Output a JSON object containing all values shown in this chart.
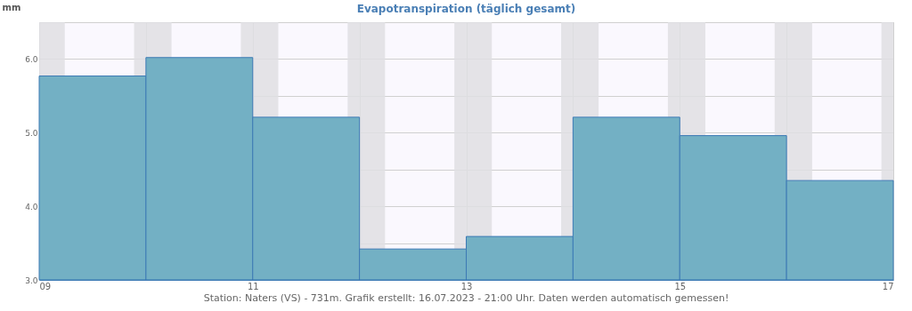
{
  "chart_data": {
    "type": "bar",
    "title": "Evapotranspiration (täglich gesamt)",
    "ylabel": "mm",
    "x": [
      "2023-07-09T12:00",
      "2023-07-10T12:00",
      "2023-07-11T12:00",
      "2023-07-12T12:00",
      "2023-07-13T12:00",
      "2023-07-14T12:00",
      "2023-07-15T12:00",
      "2023-07-16T12:00"
    ],
    "series": [
      {
        "color": "#73b0c4",
        "values": [
          5.77,
          6.02,
          5.21,
          3.42,
          3.59,
          5.21,
          4.96,
          4.35
        ]
      }
    ],
    "xlim": [
      "2023-07-09",
      "2023-07-17"
    ],
    "xticks": [
      {
        "value": "2023-07-09",
        "label": "09"
      },
      {
        "value": "2023-07-10",
        "label": null
      },
      {
        "value": "2023-07-11",
        "label": "11"
      },
      {
        "value": "2023-07-12",
        "label": null
      },
      {
        "value": "2023-07-13",
        "label": "13"
      },
      {
        "value": "2023-07-14",
        "label": null
      },
      {
        "value": "2023-07-15",
        "label": "15"
      },
      {
        "value": "2023-07-16",
        "label": null
      },
      {
        "value": "2023-07-17",
        "label": "17"
      }
    ],
    "ylim": [
      3.0,
      6.5
    ],
    "yticks": [
      {
        "value": 3.0,
        "label": "3.0"
      },
      {
        "value": 3.5,
        "label": null
      },
      {
        "value": 4.0,
        "label": "4.0"
      },
      {
        "value": 4.5,
        "label": null
      },
      {
        "value": 5.0,
        "label": "5.0"
      },
      {
        "value": 5.5,
        "label": null
      },
      {
        "value": 6.0,
        "label": "6.0"
      },
      {
        "value": 6.5,
        "label": null
      }
    ],
    "grid": true,
    "bands": [
      {
        "axis": "x",
        "from": "2023-07-09T00:00",
        "to": "2023-07-09T05:45",
        "color": "#dfdfe3"
      },
      {
        "axis": "x",
        "from": "2023-07-09T21:20",
        "to": "2023-07-10T05:45",
        "color": "#dfdfe3"
      },
      {
        "axis": "x",
        "from": "2023-07-10T21:20",
        "to": "2023-07-11T05:45",
        "color": "#dfdfe3"
      },
      {
        "axis": "x",
        "from": "2023-07-11T21:20",
        "to": "2023-07-12T05:45",
        "color": "#dfdfe3"
      },
      {
        "axis": "x",
        "from": "2023-07-12T21:20",
        "to": "2023-07-13T05:45",
        "color": "#dfdfe3"
      },
      {
        "axis": "x",
        "from": "2023-07-13T21:20",
        "to": "2023-07-14T05:45",
        "color": "#dfdfe3"
      },
      {
        "axis": "x",
        "from": "2023-07-14T21:20",
        "to": "2023-07-15T05:45",
        "color": "#dfdfe3"
      },
      {
        "axis": "x",
        "from": "2023-07-15T21:20",
        "to": "2023-07-16T05:45",
        "color": "#dfdfe3"
      },
      {
        "axis": "x",
        "from": "2023-07-16T21:20",
        "to": "2023-07-17T00:00",
        "color": "#dfdfe3"
      }
    ],
    "annotations": [
      "Station: Naters (VS) - 731m. Grafik erstellt: 16.07.2023 - 21:00 Uhr. Daten werden automatisch gemessen!"
    ]
  }
}
